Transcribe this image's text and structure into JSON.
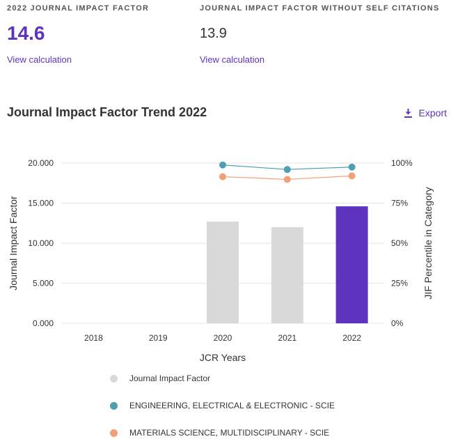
{
  "metrics": {
    "jif": {
      "label": "2022 JOURNAL IMPACT FACTOR",
      "value": "14.6",
      "link": "View calculation"
    },
    "jif_no_self": {
      "label": "JOURNAL IMPACT FACTOR WITHOUT SELF CITATIONS",
      "value": "13.9",
      "link": "View calculation"
    }
  },
  "section_title": "Journal Impact Factor Trend 2022",
  "export_label": "Export",
  "colors": {
    "accent": "#5e33bf",
    "bar_default": "#d9d9d9",
    "bar_highlight": "#5e33bf",
    "engineering": "#4ea0ae",
    "materials": "#f1a07a",
    "grid": "#e6e6e6"
  },
  "chart_data": {
    "type": "bar",
    "xlabel": "JCR Years",
    "ylabel": "Journal Impact Factor",
    "y2label": "JIF Percentile in Category",
    "categories": [
      "2018",
      "2019",
      "2020",
      "2021",
      "2022"
    ],
    "ylim": [
      0,
      20
    ],
    "yticks": [
      "0.000",
      "5.000",
      "10.000",
      "15.000",
      "20.000"
    ],
    "y2lim": [
      0,
      100
    ],
    "y2ticks": [
      "0%",
      "25%",
      "50%",
      "75%",
      "100%"
    ],
    "grid": true,
    "series": [
      {
        "name": "Journal Impact Factor",
        "kind": "bar",
        "values": [
          null,
          null,
          12.7,
          12.0,
          14.6
        ],
        "highlight_index": 4
      },
      {
        "name": "ENGINEERING, ELECTRICAL & ELECTRONIC - SCIE",
        "kind": "line",
        "axis": "right",
        "values": [
          null,
          null,
          98.8,
          96.0,
          97.5
        ]
      },
      {
        "name": "MATERIALS SCIENCE, MULTIDISCIPLINARY - SCIE",
        "kind": "line",
        "axis": "right",
        "values": [
          null,
          null,
          91.5,
          89.8,
          92.0
        ]
      }
    ],
    "legend_position": "bottom"
  }
}
